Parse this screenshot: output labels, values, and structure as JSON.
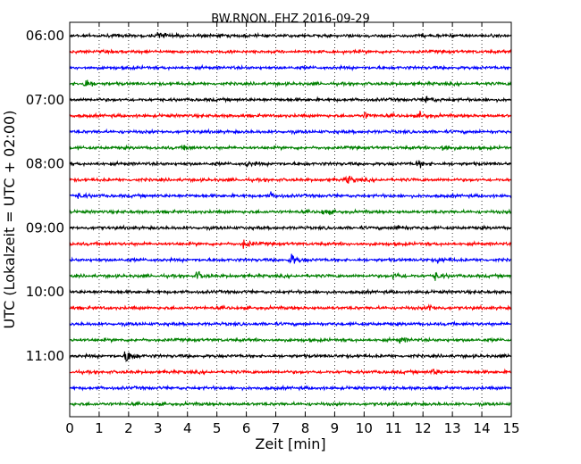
{
  "chart_data": {
    "type": "line",
    "title": "BW.RNON..EHZ 2016-09-29",
    "xlabel": "Zeit  [min]",
    "ylabel": "UTC (Lokalzeit = UTC + 02:00)",
    "xlim": [
      0,
      15
    ],
    "x_ticks": [
      0,
      1,
      2,
      3,
      4,
      5,
      6,
      7,
      8,
      9,
      10,
      11,
      12,
      13,
      14,
      15
    ],
    "y_tick_labels": [
      "06:00",
      "07:00",
      "08:00",
      "09:00",
      "10:00",
      "11:00"
    ],
    "grid": "vertical dotted",
    "line_colors": [
      "#000000",
      "#ff0000",
      "#0000ff",
      "#008000"
    ],
    "traces": [
      {
        "start": "06:00",
        "color": "#000000",
        "events": [
          [
            3.0,
            3.2
          ]
        ]
      },
      {
        "start": "06:15",
        "color": "#ff0000",
        "events": []
      },
      {
        "start": "06:30",
        "color": "#0000ff",
        "events": []
      },
      {
        "start": "06:45",
        "color": "#008000",
        "events": [
          [
            0.5,
            4.2
          ]
        ]
      },
      {
        "start": "07:00",
        "color": "#000000",
        "events": [
          [
            12.1,
            2.6
          ]
        ]
      },
      {
        "start": "07:15",
        "color": "#ff0000",
        "events": [
          [
            10.0,
            2.4
          ],
          [
            11.9,
            2.4
          ]
        ]
      },
      {
        "start": "07:30",
        "color": "#0000ff",
        "events": []
      },
      {
        "start": "07:45",
        "color": "#008000",
        "events": [
          [
            12.6,
            3.2
          ],
          [
            3.9,
            2.2
          ]
        ]
      },
      {
        "start": "08:00",
        "color": "#000000",
        "events": [
          [
            11.8,
            2.8
          ],
          [
            6.0,
            2.2
          ]
        ]
      },
      {
        "start": "08:15",
        "color": "#ff0000",
        "events": [
          [
            9.4,
            3.6
          ]
        ]
      },
      {
        "start": "08:30",
        "color": "#0000ff",
        "events": [
          [
            6.8,
            2.4
          ],
          [
            0.3,
            2.0
          ]
        ]
      },
      {
        "start": "08:45",
        "color": "#008000",
        "events": [
          [
            8.6,
            2.8
          ]
        ]
      },
      {
        "start": "09:00",
        "color": "#000000",
        "events": [
          [
            11.1,
            3.0
          ]
        ]
      },
      {
        "start": "09:15",
        "color": "#ff0000",
        "events": [
          [
            5.9,
            3.2
          ]
        ]
      },
      {
        "start": "09:30",
        "color": "#0000ff",
        "events": [
          [
            7.5,
            5.2
          ],
          [
            12.5,
            2.2
          ]
        ]
      },
      {
        "start": "09:45",
        "color": "#008000",
        "events": [
          [
            4.3,
            3.4
          ],
          [
            11.0,
            3.0
          ],
          [
            12.4,
            3.4
          ]
        ]
      },
      {
        "start": "10:00",
        "color": "#000000",
        "events": []
      },
      {
        "start": "10:15",
        "color": "#ff0000",
        "events": [
          [
            12.2,
            2.4
          ]
        ]
      },
      {
        "start": "10:30",
        "color": "#0000ff",
        "events": []
      },
      {
        "start": "10:45",
        "color": "#008000",
        "events": [
          [
            11.2,
            2.0
          ]
        ]
      },
      {
        "start": "11:00",
        "color": "#000000",
        "events": [
          [
            1.9,
            7.0
          ]
        ]
      },
      {
        "start": "11:15",
        "color": "#ff0000",
        "events": [
          [
            12.3,
            2.4
          ]
        ]
      },
      {
        "start": "11:30",
        "color": "#0000ff",
        "events": []
      },
      {
        "start": "11:45",
        "color": "#008000",
        "events": []
      }
    ]
  }
}
